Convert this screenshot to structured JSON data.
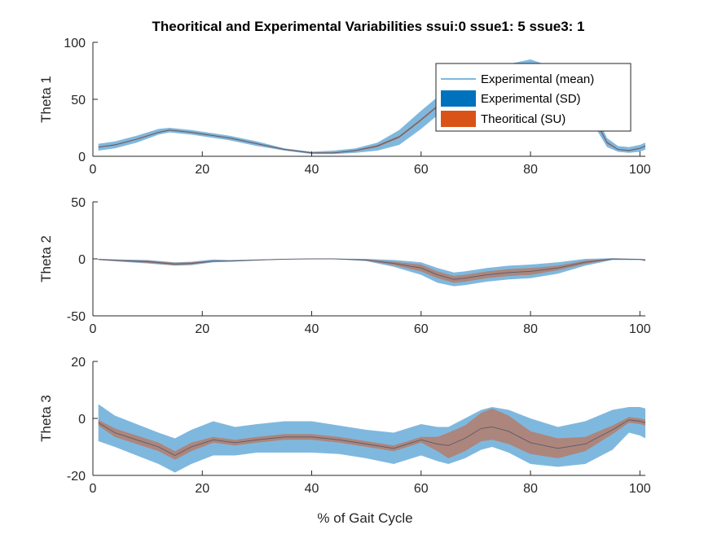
{
  "title": "Theoritical and Experimental Variabilities ssui:0 ssue1: 5 ssue3: 1",
  "xlabel": "% of Gait Cycle",
  "colors": {
    "experimental_mean": "#0072BD",
    "experimental_sd": "#0072BD",
    "theoritical_su": "#D95319",
    "mean_line_overlay": "#5a5a6a",
    "axes": "#262626"
  },
  "legend": {
    "placement": "top-right (inside Theta 1 axes)",
    "entries": [
      "Experimental (mean)",
      "Experimental (SD)",
      "Theoritical (SU)"
    ]
  },
  "chart_data": [
    {
      "type": "area",
      "ylabel": "Theta 1",
      "xlim": [
        0,
        101
      ],
      "ylim": [
        0,
        100
      ],
      "xticks": [
        "0",
        "20",
        "40",
        "60",
        "80",
        "100"
      ],
      "yticks": [
        "0",
        "50",
        "100"
      ],
      "grid": false,
      "x": [
        1,
        4,
        8,
        12,
        14,
        18,
        25,
        30,
        35,
        40,
        44,
        48,
        52,
        56,
        60,
        64,
        66,
        70,
        75,
        80,
        85,
        88,
        92,
        94,
        96,
        98,
        100,
        101
      ],
      "series": [
        {
          "name": "Experimental (mean)",
          "values": [
            8,
            10,
            15,
            21,
            23,
            21,
            16,
            11,
            6,
            3,
            3,
            5,
            9,
            17,
            32,
            48,
            56,
            63,
            73,
            78,
            70,
            55,
            30,
            12,
            6,
            5,
            7,
            9
          ]
        },
        {
          "name": "Experimental (SD)",
          "lower": [
            5,
            7,
            12,
            19,
            21,
            19,
            14,
            9,
            5,
            2,
            2,
            3,
            5,
            10,
            24,
            40,
            49,
            56,
            66,
            71,
            63,
            48,
            24,
            8,
            4,
            3,
            4,
            6
          ],
          "upper": [
            11,
            13,
            18,
            24,
            25,
            23,
            18,
            13,
            7,
            4,
            5,
            7,
            12,
            23,
            40,
            56,
            63,
            70,
            80,
            85,
            77,
            62,
            36,
            16,
            9,
            8,
            10,
            12
          ]
        },
        {
          "name": "Theoritical (SU)",
          "lower": [
            7.5,
            9.5,
            14.5,
            20.5,
            22.5,
            20.5,
            15.5,
            10.5,
            5.5,
            2.5,
            2.5,
            4.5,
            8,
            16,
            31,
            47,
            55,
            62,
            72,
            77,
            69,
            54,
            29,
            11,
            5.5,
            4.5,
            6.5,
            8.5
          ],
          "upper": [
            8.5,
            10.5,
            15.5,
            21.5,
            23.5,
            21.5,
            16.5,
            11.5,
            6.5,
            3.5,
            3.5,
            5.5,
            10,
            18,
            33,
            49,
            57,
            64,
            74,
            79,
            71,
            56,
            31,
            13,
            6.5,
            5.5,
            7.5,
            9.5
          ]
        }
      ]
    },
    {
      "type": "area",
      "ylabel": "Theta 2",
      "xlim": [
        0,
        101
      ],
      "ylim": [
        -50,
        50
      ],
      "xticks": [
        "0",
        "20",
        "40",
        "60",
        "80",
        "100"
      ],
      "yticks": [
        "-50",
        "0",
        "50"
      ],
      "grid": false,
      "x": [
        1,
        5,
        10,
        15,
        18,
        22,
        25,
        30,
        35,
        40,
        44,
        50,
        55,
        60,
        63,
        66,
        68,
        72,
        76,
        80,
        85,
        90,
        95,
        100,
        101
      ],
      "series": [
        {
          "name": "Experimental (mean)",
          "values": [
            -0.5,
            -1.5,
            -2.5,
            -4.5,
            -4,
            -2,
            -2,
            -1,
            -0.3,
            0,
            0,
            -1,
            -4,
            -8,
            -14,
            -18,
            -17,
            -14,
            -12,
            -11,
            -8,
            -3,
            0,
            -0.5,
            -1
          ]
        },
        {
          "name": "Experimental (SD)",
          "lower": [
            -1,
            -2.5,
            -4,
            -6,
            -5.5,
            -3,
            -2.5,
            -1.5,
            -0.5,
            -0.2,
            -0.2,
            -2,
            -7,
            -14,
            -21,
            -24,
            -23,
            -20,
            -18,
            -17,
            -13,
            -6,
            -1,
            -1,
            -2
          ],
          "upper": [
            0,
            -0.5,
            -1,
            -3,
            -2.5,
            -0.5,
            -1,
            -0.5,
            0,
            0.2,
            0.2,
            0,
            -1,
            -3,
            -8,
            -12,
            -11,
            -8,
            -6,
            -5,
            -3,
            0,
            0.5,
            0,
            -0.2
          ]
        },
        {
          "name": "Theoritical (SU)",
          "lower": [
            -1,
            -2,
            -3.5,
            -5.5,
            -5,
            -2.5,
            -2.5,
            -1.3,
            -0.5,
            -0.1,
            -0.1,
            -1.5,
            -5.5,
            -11,
            -17,
            -21,
            -20,
            -17,
            -15,
            -14,
            -10,
            -4.5,
            -0.5,
            -0.8,
            -1.5
          ],
          "upper": [
            0,
            -1,
            -1.5,
            -3.5,
            -3,
            -1.5,
            -1.5,
            -0.7,
            -0.1,
            0.1,
            0.1,
            -0.5,
            -2.5,
            -5,
            -11,
            -15,
            -14,
            -11,
            -9,
            -8,
            -6,
            -1.5,
            0.3,
            -0.2,
            -0.5
          ]
        }
      ]
    },
    {
      "type": "area",
      "ylabel": "Theta 3",
      "xlim": [
        0,
        101
      ],
      "ylim": [
        -20,
        20
      ],
      "xticks": [
        "0",
        "20",
        "40",
        "60",
        "80",
        "100"
      ],
      "yticks": [
        "-20",
        "0",
        "20"
      ],
      "grid": false,
      "x": [
        1,
        4,
        8,
        12,
        15,
        18,
        22,
        26,
        30,
        35,
        40,
        45,
        50,
        55,
        60,
        63,
        65,
        68,
        71,
        73,
        76,
        80,
        85,
        90,
        95,
        98,
        100,
        101
      ],
      "series": [
        {
          "name": "Experimental (mean)",
          "values": [
            -1.5,
            -5,
            -7.5,
            -10,
            -13,
            -10,
            -7.5,
            -8.5,
            -7.5,
            -6.5,
            -6.5,
            -7.5,
            -9,
            -10.5,
            -7.5,
            -9,
            -9.5,
            -7,
            -3.5,
            -3,
            -4.5,
            -8.5,
            -10.5,
            -9,
            -4,
            -0.5,
            -1,
            -1.5
          ]
        },
        {
          "name": "Experimental (SD)",
          "lower": [
            -8,
            -10,
            -13,
            -16,
            -19,
            -16,
            -13,
            -13,
            -12,
            -12,
            -12,
            -12.5,
            -14,
            -16,
            -13,
            -15,
            -16,
            -14,
            -11,
            -10,
            -12,
            -16,
            -17,
            -16,
            -11,
            -5,
            -6,
            -7
          ],
          "upper": [
            5,
            1,
            -2,
            -5,
            -7,
            -4,
            -1,
            -3,
            -2,
            -1,
            -1,
            -2.5,
            -4,
            -5,
            -2,
            -3,
            -3,
            0,
            3,
            4,
            3,
            0,
            -3,
            -1,
            3,
            4,
            4,
            3.5
          ]
        },
        {
          "name": "Theoritical (SU)",
          "lower": [
            -2.5,
            -6.5,
            -9,
            -11.5,
            -14.5,
            -11.5,
            -8.5,
            -9.5,
            -8.5,
            -7.5,
            -7.5,
            -8.5,
            -10,
            -11.5,
            -8.5,
            -11.5,
            -14,
            -11.5,
            -8,
            -7.5,
            -9,
            -12.5,
            -14,
            -11.5,
            -5.5,
            -1.5,
            -2,
            -2.5
          ],
          "upper": [
            -0.5,
            -3.5,
            -6,
            -8.5,
            -11.5,
            -8.5,
            -6.5,
            -7.5,
            -6.5,
            -5.5,
            -5.5,
            -6.5,
            -8,
            -9.5,
            -6.5,
            -6.5,
            -5,
            -2.5,
            2,
            3.5,
            1,
            -4.5,
            -7,
            -6.5,
            -2.5,
            0.5,
            0,
            -0.5
          ]
        }
      ]
    }
  ]
}
